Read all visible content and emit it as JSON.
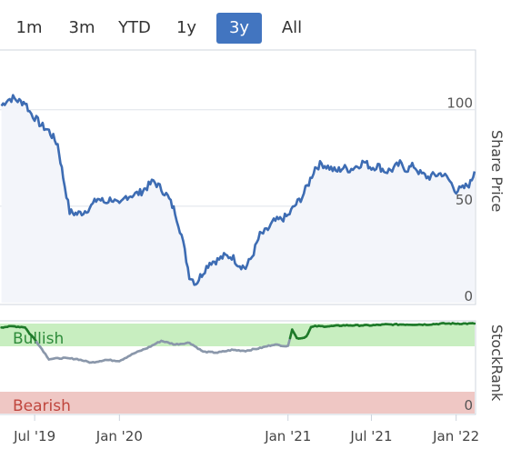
{
  "range_selector": {
    "buttons": [
      {
        "label": "1m",
        "active": false
      },
      {
        "label": "3m",
        "active": false
      },
      {
        "label": "YTD",
        "active": false
      },
      {
        "label": "1y",
        "active": false
      },
      {
        "label": "3y",
        "active": true
      },
      {
        "label": "All",
        "active": false
      }
    ]
  },
  "colors": {
    "price_line": "#3d6cb3",
    "price_fill": "#f3f5fa",
    "bullish_band": "#c8eec0",
    "bearish_band": "#efc7c4",
    "rank_bullish_line": "#1f7a2a",
    "rank_neutral_line": "#8a97aa",
    "bullish_text": "#2e8b3a",
    "bearish_text": "#c0463e"
  },
  "chart_data": [
    {
      "type": "line",
      "ylabel": "Share Price",
      "ylim": [
        0,
        130
      ],
      "yticks": [
        0,
        50,
        100
      ],
      "y_tick_labels": [
        "0",
        "50",
        "100"
      ],
      "x": [
        "2019-04-20",
        "2019-05-01",
        "2019-05-15",
        "2019-06-01",
        "2019-06-10",
        "2019-06-20",
        "2019-07-01",
        "2019-07-15",
        "2019-08-01",
        "2019-08-20",
        "2019-09-01",
        "2019-09-15",
        "2019-10-01",
        "2019-10-15",
        "2019-11-01",
        "2019-11-15",
        "2019-12-01",
        "2019-12-15",
        "2020-01-01",
        "2020-01-15",
        "2020-02-01",
        "2020-02-15",
        "2020-03-01",
        "2020-03-15",
        "2020-04-01",
        "2020-04-15",
        "2020-05-01",
        "2020-05-15",
        "2020-06-01",
        "2020-06-15",
        "2020-07-01",
        "2020-07-15",
        "2020-08-01",
        "2020-08-15",
        "2020-09-01",
        "2020-09-15",
        "2020-10-01",
        "2020-10-15",
        "2020-11-01",
        "2020-11-15",
        "2020-12-01",
        "2020-12-15",
        "2021-01-01",
        "2021-01-15",
        "2021-02-01",
        "2021-02-15",
        "2021-03-01",
        "2021-03-15",
        "2021-04-01",
        "2021-04-15",
        "2021-05-01",
        "2021-05-15",
        "2021-06-01",
        "2021-06-15",
        "2021-07-01",
        "2021-07-15",
        "2021-08-01",
        "2021-08-15",
        "2021-09-01",
        "2021-09-15",
        "2021-10-01",
        "2021-10-15",
        "2021-11-01",
        "2021-11-15",
        "2021-12-01",
        "2021-12-15",
        "2022-01-01",
        "2022-01-15",
        "2022-02-01",
        "2022-02-10"
      ],
      "series": [
        {
          "values": [
            102,
            105,
            106,
            104,
            104,
            99,
            96,
            92,
            89,
            82,
            65,
            47,
            46,
            47,
            50,
            54,
            52,
            54,
            50,
            55,
            56,
            57,
            60,
            63,
            59,
            55,
            47,
            35,
            14,
            10,
            16,
            21,
            22,
            24,
            24,
            20,
            18,
            24,
            35,
            37,
            42,
            43,
            45,
            50,
            55,
            62,
            70,
            72,
            70,
            68,
            70,
            69,
            71,
            73,
            70,
            71,
            68,
            69,
            72,
            69,
            71,
            67,
            65,
            66,
            67,
            64,
            58,
            59,
            62,
            68
          ]
        }
      ]
    },
    {
      "type": "area",
      "ylabel": "StockRank",
      "ylim": [
        0,
        100
      ],
      "y_tick_labels": [
        "0"
      ],
      "band_labels": [
        "Bullish",
        "Bearish"
      ],
      "x_tick_labels": [
        "Jul '19",
        "Jan '20",
        "Jan '21",
        "Jul '21",
        "Jan '22"
      ],
      "x": [
        "2019-04-20",
        "2019-05-15",
        "2019-06-10",
        "2019-06-20",
        "2019-07-01",
        "2019-08-01",
        "2019-09-01",
        "2019-10-01",
        "2019-11-01",
        "2019-12-01",
        "2020-01-01",
        "2020-02-01",
        "2020-03-01",
        "2020-04-01",
        "2020-05-01",
        "2020-06-01",
        "2020-07-01",
        "2020-08-01",
        "2020-09-01",
        "2020-10-01",
        "2020-11-01",
        "2020-12-01",
        "2021-01-01",
        "2021-01-10",
        "2021-01-20",
        "2021-02-01",
        "2021-02-10",
        "2021-02-20",
        "2021-03-01",
        "2021-04-01",
        "2021-05-01",
        "2021-06-01",
        "2021-07-01",
        "2021-08-01",
        "2021-09-01",
        "2021-10-01",
        "2021-11-01",
        "2021-12-01",
        "2022-01-01",
        "2022-02-10"
      ],
      "series": [
        {
          "values": [
            95,
            96,
            95,
            88,
            82,
            60,
            61,
            60,
            56,
            59,
            58,
            66,
            72,
            80,
            76,
            78,
            68,
            67,
            70,
            69,
            72,
            76,
            74,
            93,
            83,
            83,
            85,
            95,
            96,
            96,
            97,
            97,
            97,
            98,
            98,
            98,
            98,
            99,
            99,
            99
          ]
        }
      ]
    }
  ]
}
